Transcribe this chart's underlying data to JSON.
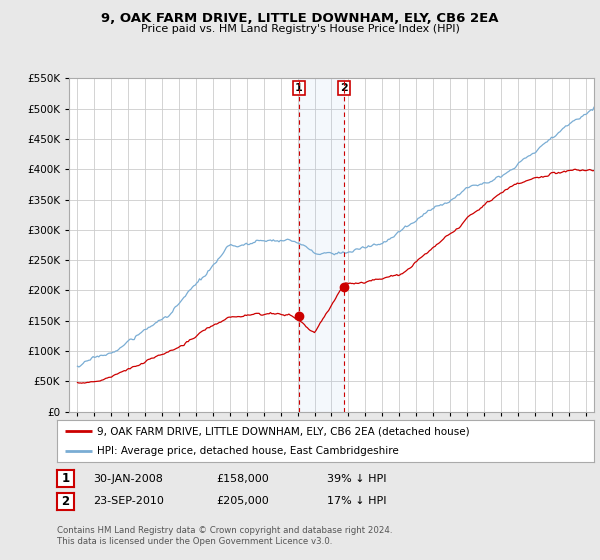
{
  "title": "9, OAK FARM DRIVE, LITTLE DOWNHAM, ELY, CB6 2EA",
  "subtitle": "Price paid vs. HM Land Registry's House Price Index (HPI)",
  "legend_line1": "9, OAK FARM DRIVE, LITTLE DOWNHAM, ELY, CB6 2EA (detached house)",
  "legend_line2": "HPI: Average price, detached house, East Cambridgeshire",
  "footnote": "Contains HM Land Registry data © Crown copyright and database right 2024.\nThis data is licensed under the Open Government Licence v3.0.",
  "sale1_date": "30-JAN-2008",
  "sale1_price": "£158,000",
  "sale1_hpi": "39% ↓ HPI",
  "sale2_date": "23-SEP-2010",
  "sale2_price": "£205,000",
  "sale2_hpi": "17% ↓ HPI",
  "red_color": "#cc0000",
  "blue_color": "#7aadd4",
  "sale1_x": 2008.08,
  "sale2_x": 2010.73,
  "sale1_y": 158000,
  "sale2_y": 205000,
  "ylim": [
    0,
    550000
  ],
  "xlim": [
    1994.5,
    2025.5
  ],
  "yticks": [
    0,
    50000,
    100000,
    150000,
    200000,
    250000,
    300000,
    350000,
    400000,
    450000,
    500000,
    550000
  ],
  "xtick_years": [
    1995,
    1996,
    1997,
    1998,
    1999,
    2000,
    2001,
    2002,
    2003,
    2004,
    2005,
    2006,
    2007,
    2008,
    2009,
    2010,
    2011,
    2012,
    2013,
    2014,
    2015,
    2016,
    2017,
    2018,
    2019,
    2020,
    2021,
    2022,
    2023,
    2024,
    2025
  ],
  "bg_color": "#e8e8e8",
  "plot_bg": "#ffffff"
}
